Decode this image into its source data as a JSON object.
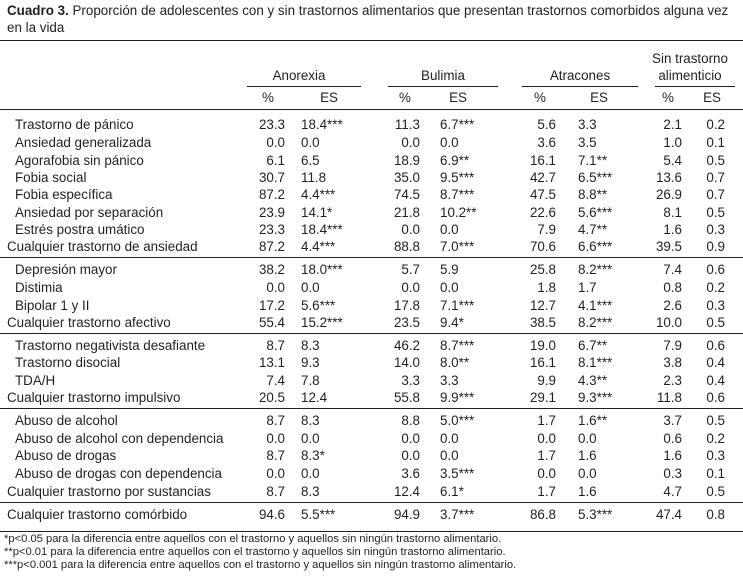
{
  "caption": {
    "label": "Cuadro 3.",
    "text": " Proporción de adolescentes con y sin trastornos alimentarios que presentan trastornos comorbidos alguna vez en la vida"
  },
  "table": {
    "groups": [
      "Anorexia",
      "Bulimia",
      "Atracones",
      "Sin trastorno alimenticio"
    ],
    "group_lines": {
      "last_1": "Sin trastorno",
      "last_2": "alimenticio"
    },
    "subheaders": [
      "%",
      "ES"
    ],
    "rows": [
      {
        "label": "Trastorno de pánico",
        "indent": true,
        "v": [
          "23.3",
          "18.4***",
          "11.3",
          "6.7***",
          "5.6",
          "3.3",
          "2.1",
          "0.2"
        ]
      },
      {
        "label": "Ansiedad generalizada",
        "indent": true,
        "v": [
          "0.0",
          "0.0",
          "0.0",
          "0.0",
          "3.6",
          "3.5",
          "1.0",
          "0.1"
        ]
      },
      {
        "label": "Agorafobia sin pánico",
        "indent": true,
        "v": [
          "6.1",
          "6.5",
          "18.9",
          "6.9**",
          "16.1",
          "7.1**",
          "5.4",
          "0.5"
        ]
      },
      {
        "label": "Fobia social",
        "indent": true,
        "v": [
          "30.7",
          "11.8",
          "35.0",
          "9.5***",
          "42.7",
          "6.5***",
          "13.6",
          "0.7"
        ]
      },
      {
        "label": "Fobia específica",
        "indent": true,
        "v": [
          "87.2",
          "4.4***",
          "74.5",
          "8.7***",
          "47.5",
          "8.8**",
          "26.9",
          "0.7"
        ]
      },
      {
        "label": "Ansiedad por separación",
        "indent": true,
        "v": [
          "23.9",
          "14.1*",
          "21.8",
          "10.2**",
          "22.6",
          "5.6***",
          "8.1",
          "0.5"
        ]
      },
      {
        "label": "Estrés postra umático",
        "indent": true,
        "v": [
          "23.3",
          "18.4***",
          "0.0",
          "0.0",
          "7.9",
          "4.7**",
          "1.6",
          "0.3"
        ]
      },
      {
        "label": "Cualquier trastorno de ansiedad",
        "indent": false,
        "v": [
          "87.2",
          "4.4***",
          "88.8",
          "7.0***",
          "70.6",
          "6.6***",
          "39.5",
          "0.9"
        ]
      },
      {
        "label": "Depresión mayor",
        "indent": true,
        "v": [
          "38.2",
          "18.0***",
          "5.7",
          "5.9",
          "25.8",
          "8.2***",
          "7.4",
          "0.6"
        ]
      },
      {
        "label": "Distimia",
        "indent": true,
        "v": [
          "0.0",
          "0.0",
          "0.0",
          "0.0",
          "1.8",
          "1.7",
          "0.8",
          "0.2"
        ]
      },
      {
        "label": "Bipolar 1 y II",
        "indent": true,
        "v": [
          "17.2",
          "5.6***",
          "17.8",
          "7.1***",
          "12.7",
          "4.1***",
          "2.6",
          "0.3"
        ]
      },
      {
        "label": "Cualquier trastorno afectivo",
        "indent": false,
        "v": [
          "55.4",
          "15.2***",
          "23.5",
          "9.4*",
          "38.5",
          "8.2***",
          "10.0",
          "0.5"
        ]
      },
      {
        "label": "Trastorno negativista desafiante",
        "indent": true,
        "v": [
          "8.7",
          "8.3",
          "46.2",
          "8.7***",
          "19.0",
          "6.7**",
          "7.9",
          "0.6"
        ]
      },
      {
        "label": "Trastorno disocial",
        "indent": true,
        "v": [
          "13.1",
          "9.3",
          "14.0",
          "8.0**",
          "16.1",
          "8.1***",
          "3.8",
          "0.4"
        ]
      },
      {
        "label": "TDA/H",
        "indent": true,
        "v": [
          "7.4",
          "7.8",
          "3.3",
          "3.3",
          "9.9",
          "4.3**",
          "2.3",
          "0.4"
        ]
      },
      {
        "label": "Cualquier trastorno impulsivo",
        "indent": false,
        "v": [
          "20.5",
          "12.4",
          "55.8",
          "9.9***",
          "29.1",
          "9.3***",
          "11.8",
          "0.6"
        ]
      },
      {
        "label": "Abuso de alcohol",
        "indent": true,
        "v": [
          "8.7",
          "8.3",
          "8.8",
          "5.0***",
          "1.7",
          "1.6**",
          "3.7",
          "0.5"
        ]
      },
      {
        "label": "Abuso de alcohol con dependencia",
        "indent": true,
        "v": [
          "0.0",
          "0.0",
          "0.0",
          "0.0",
          "0.0",
          "0.0",
          "0.6",
          "0.2"
        ]
      },
      {
        "label": "Abuso de drogas",
        "indent": true,
        "v": [
          "8.7",
          "8.3*",
          "0.0",
          "0.0",
          "1.7",
          "1.6",
          "1.6",
          "0.3"
        ]
      },
      {
        "label": "Abuso de drogas con dependencia",
        "indent": true,
        "v": [
          "0.0",
          "0.0",
          "3.6",
          "3.5***",
          "0.0",
          "0.0",
          "0.3",
          "0.1"
        ]
      },
      {
        "label": "Cualquier trastorno por sustancias",
        "indent": false,
        "v": [
          "8.7",
          "8.3",
          "12.4",
          "6.1*",
          "1.7",
          "1.6",
          "4.7",
          "0.5"
        ]
      },
      {
        "label": "Cualquier trastorno comórbido",
        "indent": false,
        "v": [
          "94.6",
          "5.5***",
          "94.9",
          "3.7***",
          "86.8",
          "5.3***",
          "47.4",
          "0.8"
        ]
      }
    ]
  },
  "footnotes": [
    "*p<0.05 para la diferencia entre aquellos con el trastorno y aquellos sin ningún trastorno alimentario.",
    "**p<0.01 para la diferencia entre aquellos con el trastorno y aquellos sin ningún trastorno alimentario.",
    "***p<0.001 para la diferencia entre aquellos con el trastorno y aquellos sin ningún trastorno alimentario."
  ]
}
